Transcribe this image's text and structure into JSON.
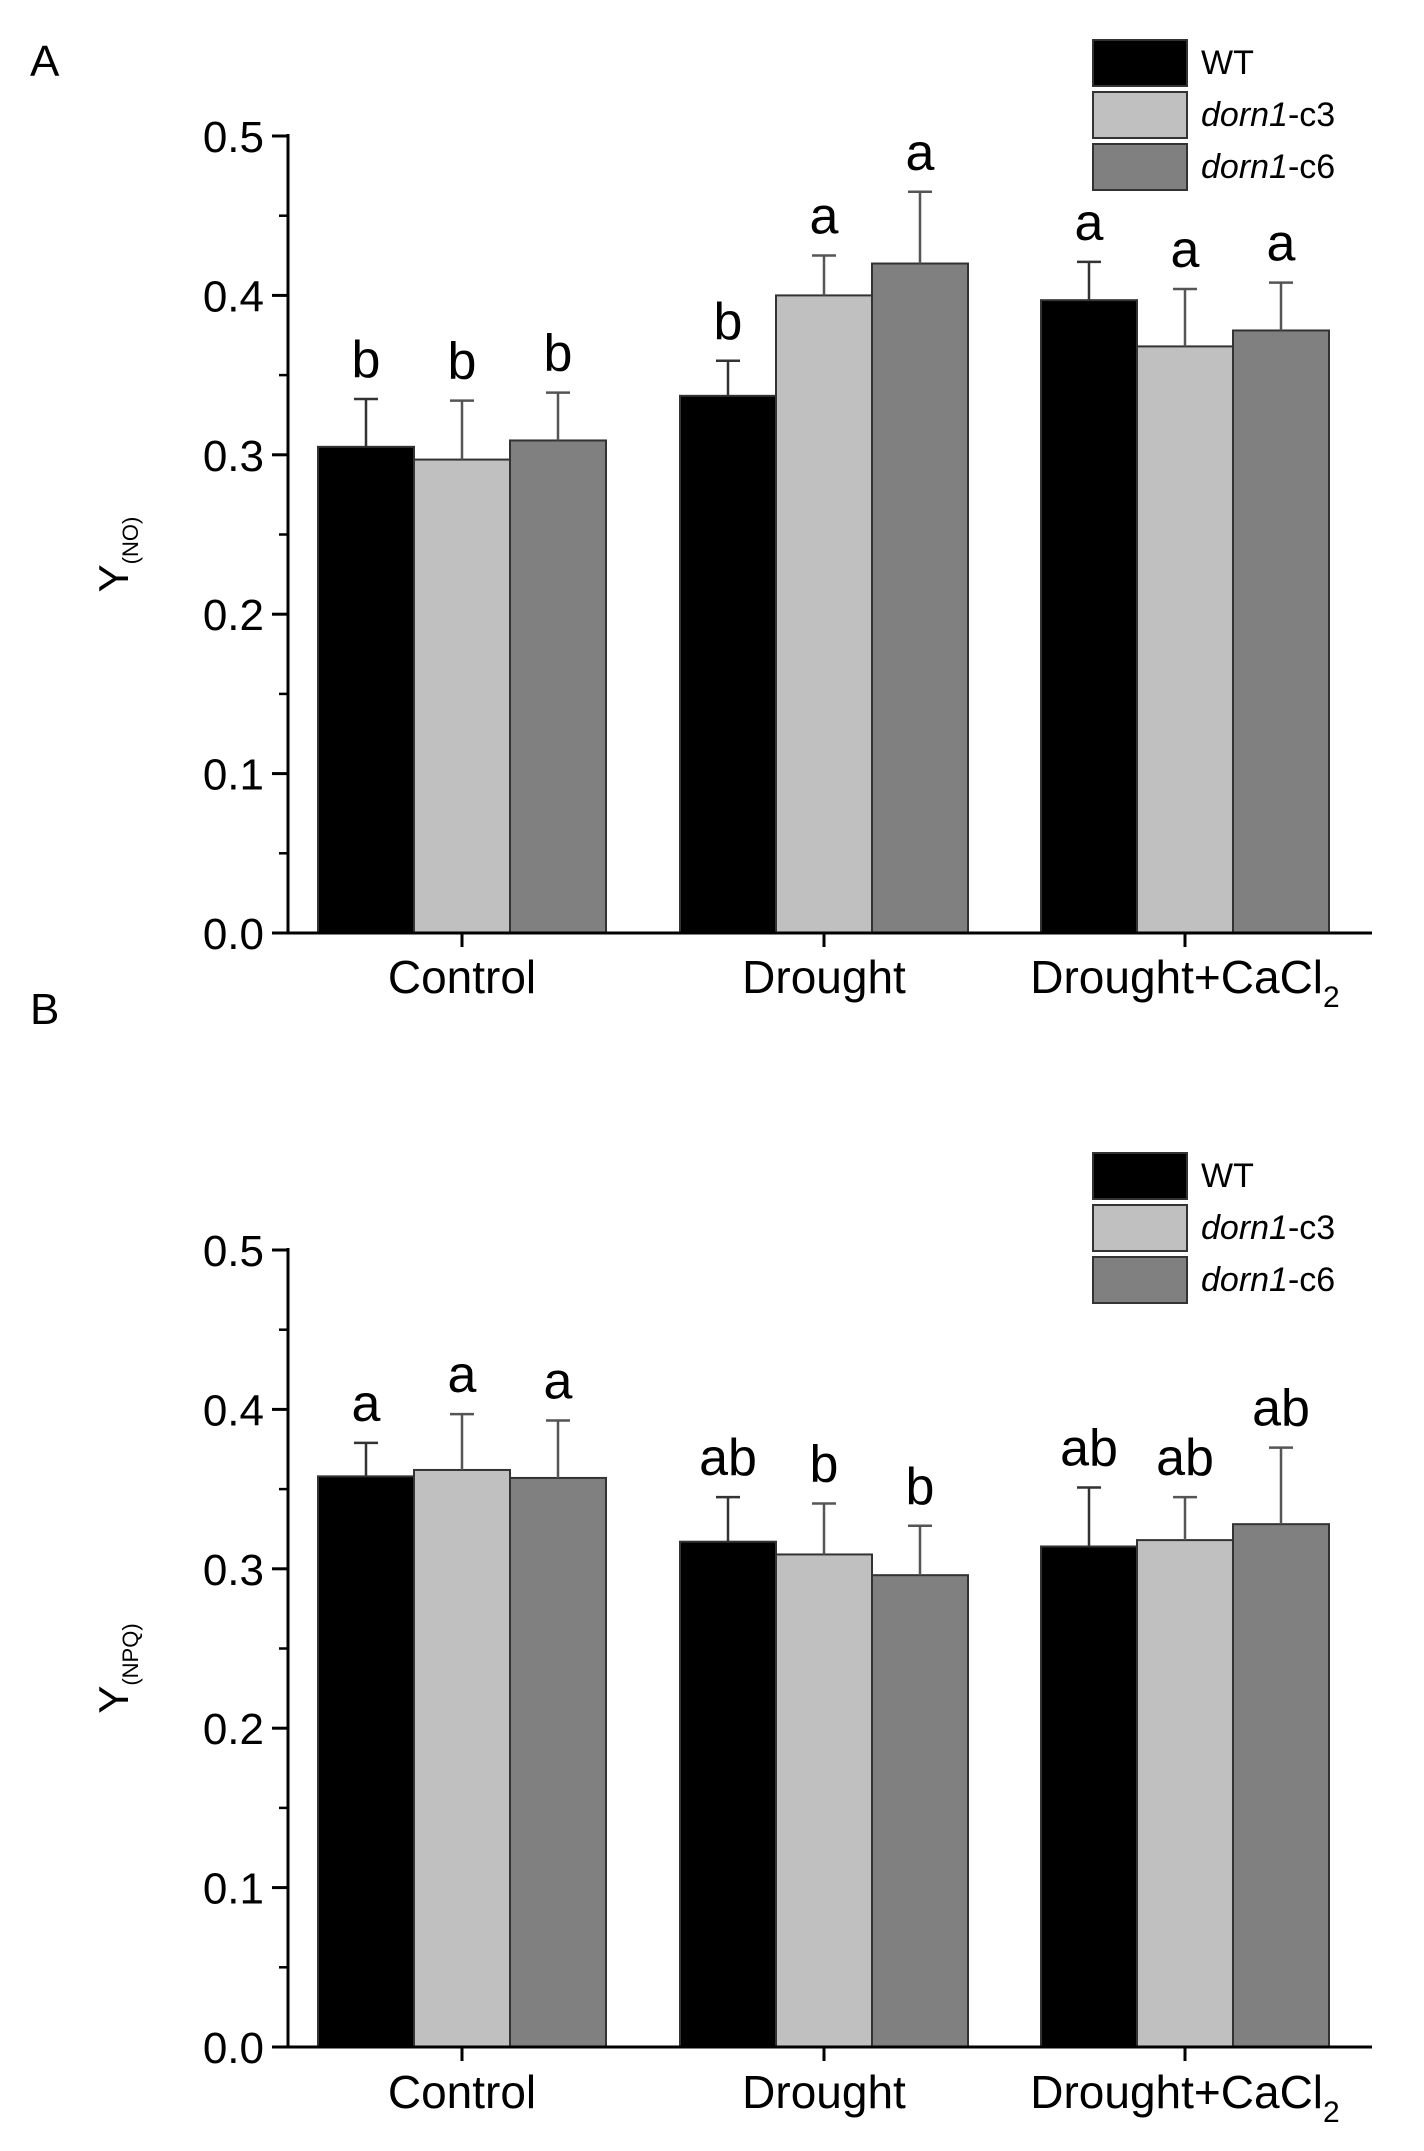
{
  "chart_data": [
    {
      "panel": "A",
      "type": "bar",
      "ylabel": {
        "main": "Y",
        "sub": "(NO)"
      },
      "ylim": [
        0,
        0.5
      ],
      "yticks": [
        "0.0",
        "0.1",
        "0.2",
        "0.3",
        "0.4",
        "0.5"
      ],
      "categories": [
        {
          "main": "Control",
          "sub": ""
        },
        {
          "main": "Drought",
          "sub": ""
        },
        {
          "main": "Drought+CaCl",
          "sub": "2"
        }
      ],
      "series": [
        {
          "name": "WT",
          "color": "#000000",
          "values": [
            0.305,
            0.337,
            0.397
          ],
          "errors": [
            0.03,
            0.022,
            0.024
          ],
          "letters": [
            "b",
            "b",
            "a"
          ]
        },
        {
          "name": "dorn1-c3",
          "color": "#c0c0c0",
          "values": [
            0.297,
            0.4,
            0.368
          ],
          "errors": [
            0.037,
            0.025,
            0.036
          ],
          "letters": [
            "b",
            "a",
            "a"
          ]
        },
        {
          "name": "dorn1-c6",
          "color": "#808080",
          "values": [
            0.309,
            0.42,
            0.378
          ],
          "errors": [
            0.03,
            0.045,
            0.03
          ],
          "letters": [
            "b",
            "a",
            "a"
          ]
        }
      ],
      "legend": [
        {
          "italic": "",
          "rest": "WT"
        },
        {
          "italic": "dorn1",
          "rest": "-c3"
        },
        {
          "italic": "dorn1",
          "rest": "-c6"
        }
      ]
    },
    {
      "panel": "B",
      "type": "bar",
      "ylabel": {
        "main": "Y",
        "sub": "(NPQ)"
      },
      "ylim": [
        0,
        0.5
      ],
      "yticks": [
        "0.0",
        "0.1",
        "0.2",
        "0.3",
        "0.4",
        "0.5"
      ],
      "categories": [
        {
          "main": "Control",
          "sub": ""
        },
        {
          "main": "Drought",
          "sub": ""
        },
        {
          "main": "Drought+CaCl",
          "sub": "2"
        }
      ],
      "series": [
        {
          "name": "WT",
          "color": "#000000",
          "values": [
            0.358,
            0.317,
            0.314
          ],
          "errors": [
            0.021,
            0.028,
            0.037
          ],
          "letters": [
            "a",
            "ab",
            "ab"
          ]
        },
        {
          "name": "dorn1-c3",
          "color": "#c0c0c0",
          "values": [
            0.362,
            0.309,
            0.318
          ],
          "errors": [
            0.035,
            0.032,
            0.027
          ],
          "letters": [
            "a",
            "b",
            "ab"
          ]
        },
        {
          "name": "dorn1-c6",
          "color": "#808080",
          "values": [
            0.357,
            0.296,
            0.328
          ],
          "errors": [
            0.036,
            0.031,
            0.048
          ],
          "letters": [
            "a",
            "b",
            "ab"
          ]
        }
      ],
      "legend": [
        {
          "italic": "",
          "rest": "WT"
        },
        {
          "italic": "dorn1",
          "rest": "-c3"
        },
        {
          "italic": "dorn1",
          "rest": "-c6"
        }
      ]
    }
  ]
}
